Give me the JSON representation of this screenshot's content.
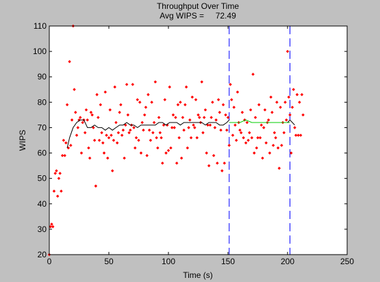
{
  "chart_data": {
    "type": "scatter",
    "title": "Throughput Over Time",
    "subtitle": "Avg WIPS =     72.49",
    "xlabel": "Time (s)",
    "ylabel": "WIPS",
    "xlim": [
      0,
      250
    ],
    "ylim": [
      20,
      110
    ],
    "xticks": [
      0,
      50,
      100,
      150,
      200,
      250
    ],
    "yticks": [
      20,
      30,
      40,
      50,
      60,
      70,
      80,
      90,
      100,
      110
    ],
    "grid": false,
    "colors": {
      "figure_bg": "#c0c0c0",
      "plot_bg": "#ffffff",
      "points": "#ff0000",
      "moving_avg": "#000000",
      "segment_avg": "#00cc00",
      "markers": "#0000ff"
    },
    "vlines": [
      151,
      202
    ],
    "series": [
      {
        "kind": "points",
        "x": [
          0,
          1,
          2,
          3,
          4,
          5,
          6,
          7,
          8,
          9,
          10,
          11,
          12,
          13,
          14,
          15,
          16,
          17,
          18,
          19,
          20,
          21,
          22,
          23,
          24,
          25,
          26,
          27,
          28,
          29,
          30,
          31,
          32,
          33,
          34,
          35,
          36,
          37,
          38,
          39,
          40,
          41,
          42,
          43,
          44,
          45,
          46,
          47,
          48,
          49,
          50,
          51,
          52,
          53,
          54,
          55,
          56,
          57,
          58,
          59,
          60,
          61,
          62,
          63,
          64,
          65,
          66,
          67,
          68,
          69,
          70,
          71,
          72,
          73,
          74,
          75,
          76,
          77,
          78,
          79,
          80,
          81,
          82,
          83,
          84,
          85,
          86,
          87,
          88,
          89,
          90,
          91,
          92,
          93,
          94,
          95,
          96,
          97,
          98,
          99,
          100,
          101,
          102,
          103,
          104,
          105,
          106,
          107,
          108,
          109,
          110,
          111,
          112,
          113,
          114,
          115,
          116,
          117,
          118,
          119,
          120,
          121,
          122,
          123,
          124,
          125,
          126,
          127,
          128,
          129,
          130,
          131,
          132,
          133,
          134,
          135,
          136,
          137,
          138,
          139,
          140,
          141,
          142,
          143,
          144,
          145,
          146,
          147,
          148,
          149,
          150,
          151,
          152,
          153,
          154,
          155,
          156,
          157,
          158,
          159,
          160,
          161,
          162,
          163,
          164,
          165,
          166,
          167,
          168,
          169,
          170,
          171,
          172,
          173,
          174,
          175,
          176,
          177,
          178,
          179,
          180,
          181,
          182,
          183,
          184,
          185,
          186,
          187,
          188,
          189,
          190,
          191,
          192,
          193,
          194,
          195,
          196,
          197,
          198,
          199,
          200,
          201,
          202,
          203,
          204,
          205,
          206,
          207,
          208,
          209,
          210,
          211,
          212,
          213
        ],
        "y": [
          20,
          31,
          32,
          31,
          45,
          52,
          53,
          43,
          50,
          52,
          45,
          59,
          65,
          59,
          64,
          79,
          62,
          96,
          63,
          73,
          110,
          85,
          76,
          67,
          70,
          73,
          74,
          60,
          72,
          73,
          68,
          77,
          73,
          62,
          58,
          76,
          75,
          70,
          65,
          47,
          83,
          74,
          65,
          79,
          68,
          64,
          60,
          84,
          67,
          58,
          66,
          77,
          67,
          53,
          65,
          86,
          72,
          64,
          68,
          76,
          79,
          67,
          69,
          58,
          71,
          87,
          75,
          68,
          69,
          71,
          87,
          70,
          62,
          66,
          81,
          65,
          80,
          60,
          72,
          69,
          75,
          78,
          59,
          83,
          69,
          65,
          80,
          68,
          72,
          88,
          66,
          62,
          74,
          68,
          66,
          56,
          71,
          81,
          60,
          71,
          61,
          86,
          62,
          70,
          75,
          70,
          74,
          56,
          79,
          66,
          80,
          58,
          74,
          69,
          79,
          86,
          62,
          70,
          73,
          66,
          82,
          71,
          70,
          81,
          66,
          75,
          74,
          72,
          88,
          68,
          74,
          77,
          60,
          71,
          55,
          71,
          74,
          80,
          59,
          70,
          73,
          56,
          81,
          76,
          69,
          53,
          79,
          56,
          75,
          69,
          74,
          63,
          87,
          81,
          67,
          78,
          71,
          65,
          84,
          72,
          69,
          68,
          76,
          66,
          73,
          64,
          72,
          65,
          68,
          77,
          66,
          91,
          60,
          74,
          62,
          66,
          79,
          66,
          71,
          58,
          70,
          77,
          64,
          72,
          73,
          60,
          82,
          76,
          63,
          68,
          66,
          80,
          62,
          54,
          78,
          63,
          72,
          68,
          80,
          73,
          100,
          82,
          75,
          60,
          78,
          85,
          70,
          67,
          83,
          67,
          80,
          67,
          83,
          75
        ]
      },
      {
        "kind": "moving-average",
        "x": [
          15,
          17,
          20,
          23,
          26,
          29,
          32,
          35,
          38,
          41,
          44,
          47,
          50,
          53,
          56,
          59,
          62,
          65,
          68,
          71,
          74,
          77,
          80,
          83,
          86,
          89,
          92,
          95,
          98,
          101,
          104,
          107,
          110,
          113,
          116,
          119,
          122,
          125,
          128,
          131,
          134,
          137,
          140,
          143,
          146,
          149,
          151
        ],
        "y": [
          62,
          66,
          70,
          72,
          73,
          73,
          70,
          70,
          71,
          70,
          70,
          69,
          70,
          69,
          70,
          71,
          71,
          72,
          71,
          71,
          70,
          71,
          71,
          71,
          71,
          71,
          72,
          72,
          71,
          72,
          72,
          72,
          71,
          72,
          72,
          72,
          72,
          72,
          72,
          71,
          72,
          72,
          72,
          71,
          71,
          72,
          73
        ]
      },
      {
        "kind": "segment-average",
        "x": [
          151,
          155,
          160,
          165,
          170,
          175,
          180,
          185,
          190,
          195,
          200,
          202
        ],
        "y": [
          72,
          72,
          72,
          73,
          72,
          72,
          72,
          72,
          72,
          72,
          72,
          72
        ]
      },
      {
        "kind": "segment-average-black",
        "x": [
          200,
          202,
          204,
          206
        ],
        "y": [
          72,
          73,
          72,
          71
        ]
      }
    ]
  }
}
